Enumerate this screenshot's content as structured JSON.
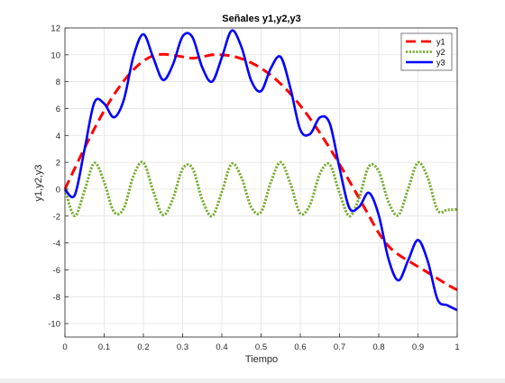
{
  "chart_data": {
    "type": "line",
    "title": "Señales y1,y2,y3",
    "xlabel": "Tiempo",
    "ylabel": "y1,y2,y3",
    "xlim": [
      0,
      1
    ],
    "ylim": [
      -11,
      12
    ],
    "x_ticks": [
      "0",
      "0.1",
      "0.2",
      "0.3",
      "0.4",
      "0.5",
      "0.6",
      "0.7",
      "0.8",
      "0.9",
      "1"
    ],
    "y_ticks": [
      "-10",
      "-8",
      "-6",
      "-4",
      "-2",
      "0",
      "2",
      "4",
      "6",
      "8",
      "10",
      "12"
    ],
    "grid": true,
    "legend_position": "top-right",
    "x": [
      0,
      0.025,
      0.05,
      0.075,
      0.1,
      0.125,
      0.15,
      0.175,
      0.2,
      0.225,
      0.25,
      0.275,
      0.3,
      0.325,
      0.35,
      0.375,
      0.4,
      0.425,
      0.45,
      0.475,
      0.5,
      0.525,
      0.55,
      0.575,
      0.6,
      0.625,
      0.65,
      0.675,
      0.7,
      0.725,
      0.75,
      0.775,
      0.8,
      0.825,
      0.85,
      0.875,
      0.9,
      0.925,
      0.95,
      0.975,
      1
    ],
    "series": [
      {
        "name": "y1",
        "color": "#ff0000",
        "style": "dashed",
        "values": [
          0,
          1.55,
          3.06,
          4.5,
          5.84,
          7.03,
          8.06,
          8.9,
          9.54,
          9.93,
          10.04,
          9.98,
          9.85,
          9.75,
          9.85,
          10.0,
          10.0,
          9.91,
          9.71,
          9.41,
          9.0,
          8.48,
          7.84,
          7.09,
          6.22,
          5.25,
          4.19,
          3.06,
          1.86,
          0.61,
          -0.67,
          -1.97,
          -3.26,
          -4.24,
          -4.86,
          -5.32,
          -5.76,
          -6.2,
          -6.65,
          -7.1,
          -7.5
        ]
      },
      {
        "name": "y2",
        "color": "#77ac30",
        "style": "dotted",
        "values": [
          0,
          -1.99,
          -0.1,
          1.95,
          0.53,
          -1.68,
          -1.42,
          1.02,
          1.99,
          -0.13,
          -1.91,
          -0.73,
          1.52,
          1.57,
          -0.78,
          -2.0,
          -0.2,
          1.89,
          0.87,
          -1.34,
          -1.7,
          0.53,
          2.0,
          0.4,
          -1.8,
          -1.14,
          1.15,
          1.84,
          -0.28,
          -2.0,
          -0.64,
          1.7,
          1.33,
          -0.97,
          -1.93,
          0.03,
          1.98,
          0.84,
          -1.56,
          -1.54,
          -1.5
        ]
      },
      {
        "name": "y3",
        "color": "#0000ff",
        "style": "solid",
        "values": [
          0,
          -0.44,
          2.96,
          6.45,
          6.37,
          5.35,
          6.64,
          9.92,
          11.53,
          9.8,
          8.13,
          9.25,
          11.37,
          11.32,
          9.07,
          8.0,
          9.8,
          11.8,
          10.58,
          8.07,
          7.3,
          9.01,
          9.84,
          7.49,
          4.42,
          4.11,
          5.34,
          4.9,
          1.58,
          -1.39,
          -1.31,
          -0.27,
          -1.93,
          -5.21,
          -6.79,
          -5.29,
          -3.78,
          -5.36,
          -8.21,
          -8.64,
          -9.0
        ]
      }
    ]
  }
}
